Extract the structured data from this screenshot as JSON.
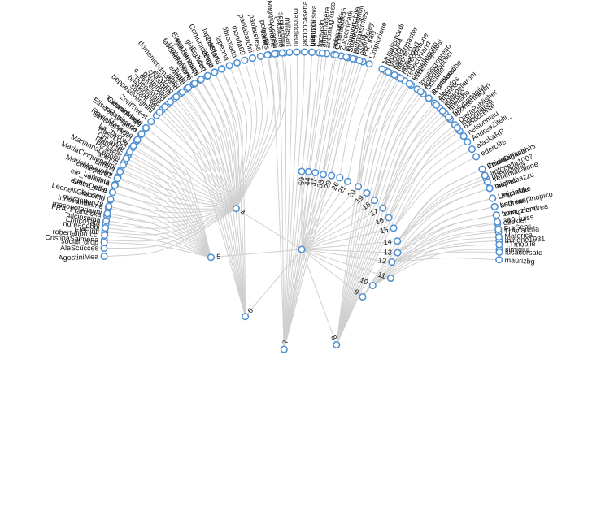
{
  "colors": {
    "node_stroke": "#4f8fd0",
    "node_fill": "#ffffff",
    "link": "#cfcfcf",
    "text": "#111111"
  },
  "clusters": [
    {
      "id": "4",
      "label": "4",
      "leaves": [
        "soniachina",
        "selvaggialucarelli",
        "petrorfilis",
        "paolatelesa",
        "paolabardini",
        "monda69",
        "libromatto",
        "lapenna",
        "lapinteriana",
        "ideata",
        "giacomoaq",
        "fgiacomoaqs",
        "favianoromano",
        "edenlu",
        "domenicodmatano",
        "cheargetti",
        "c_delvecchio",
        "breakingnew",
        "beppesevergnini",
        "ZoritTweet",
        "TurismoMagg",
        "Teo_Tegano",
        "SimoneFrMari",
        "RoseLoca",
        "MaurinaF",
        "MariannaLepore",
        "MariaCinquepalmi",
        "MarioManuelini",
        "Linkesta",
        "LiberDocet",
        "LeonelliGiacomo",
        "Innovandiamo",
        "FRA_Franziska",
        "EnricoTata",
        "ElePinti",
        "CristinaSalmena",
        "AleScucces",
        "AgostiniMea"
      ]
    },
    {
      "id": "5",
      "label": "5",
      "leaves": [
        "social_drop",
        "robertafiorucci",
        "ndreagobbi",
        "miciospina",
        "masonotarianni",
        "margotten78",
        "leiosimi",
        "eIettra_ellie",
        "ele_voltolina",
        "contepaz83",
        "cimina",
        "antnuc",
        "PiZtweet",
        "OhLaWar",
        "La_TwiTwi",
        "FlavioMassimo",
        "EliseoRapisarda",
        "Cittadinirealti"
      ]
    },
    {
      "id": "6",
      "label": "6",
      "leaves": [
        "squani_ita",
        "ridenestdia",
        "gNaeiruba",
        "eliodono",
        "albfsi",
        "Tughi",
        "UmbriaNews",
        "ElenaTorresani",
        "E_Juiuri",
        "ComunicaDigit",
        "CisStarLi"
      ]
    },
    {
      "id": "7",
      "label": "7",
      "leaves": [
        "tiamt_",
        "rondine",
        "paolasino",
        "millastart",
        "metodoleon",
        "jacopocasetta",
        "giannidilisiva",
        "faceasini",
        "antoniogrosso",
        "abbarcook",
        "ZucconiPark",
        "SuarezBagnoli",
        "Pripila",
        "PR_Italy"
      ]
    },
    {
      "id": "8",
      "label": "8",
      "leaves": [
        "urcimusa",
        "tweetermaster",
        "ternandoIT",
        "rebeconiand",
        "massimopelosi",
        "lmsaiscropreso",
        "fanciulle",
        "sogniticreche",
        "alecolfos",
        "abbepellaroni",
        "arenabo",
        "apontenuaguri",
        "DietaPublisher",
        "61saccente"
      ]
    },
    {
      "id": "9",
      "label": "9",
      "leaves": [
        "IbridoDigitale",
        "ripeindiana",
        "laopaci"
      ]
    },
    {
      "id": "10",
      "label": "10",
      "leaves": [
        "LeticiaMe",
        "betmian",
        "bomi_nom",
        "ezokiel",
        "TrAvlateria",
        "mirjone1981",
        "simigiuj"
      ]
    },
    {
      "id": "11",
      "label": "11",
      "leaves": []
    },
    {
      "id": "12",
      "label": "12",
      "leaves": [
        "360_luiss",
        "FraSens",
        "Materica",
        "TTmobile",
        "lucacorsato",
        "maurizbg"
      ]
    },
    {
      "id": "13",
      "label": "13",
      "leaves": [
        "Ungormite",
        "andreaspinopico",
        "ferrazziandrea"
      ]
    },
    {
      "id": "14",
      "label": "14",
      "leaves": [
        "ErminiaFacchini",
        "antonella1007",
        "irenemacalone",
        "micheleazzu"
      ]
    },
    {
      "id": "15",
      "label": "15",
      "leaves": [
        "AndreaZitelli_",
        "alaskaRP",
        "ederclite"
      ]
    },
    {
      "id": "16",
      "label": "16",
      "leaves": [
        "mgiugliarelli",
        "nelsonmau"
      ]
    },
    {
      "id": "17",
      "label": "17",
      "leaves": [
        "arianna",
        "pierofio",
        "rosybattaglia"
      ]
    },
    {
      "id": "18",
      "label": "18",
      "leaves": [
        "4piedi85polici",
        "ilbertolucci"
      ]
    },
    {
      "id": "19",
      "label": "19",
      "leaves": [
        "ciropellegrino"
      ]
    },
    {
      "id": "20",
      "label": "20",
      "leaves": [
        "Viciadr",
        "lakenevo",
        "matteoplatone"
      ]
    },
    {
      "id": "21",
      "label": "21",
      "leaves": [
        "Musalecpardi"
      ]
    },
    {
      "id": "26",
      "label": "26",
      "leaves": [
        "Limpiccione"
      ]
    },
    {
      "id": "29",
      "label": "29",
      "leaves": [
        "pedrofejey"
      ]
    },
    {
      "id": "33",
      "label": "33",
      "leaves": [
        "insopportabile",
        "journalismfest"
      ]
    },
    {
      "id": "37",
      "label": "37",
      "leaves": [
        "ChiaraBak86"
      ]
    },
    {
      "id": "44",
      "label": "44",
      "leaves": [
        "annamasera"
      ]
    },
    {
      "id": "59",
      "label": "59",
      "leaves": [
        "briguzia"
      ]
    }
  ]
}
